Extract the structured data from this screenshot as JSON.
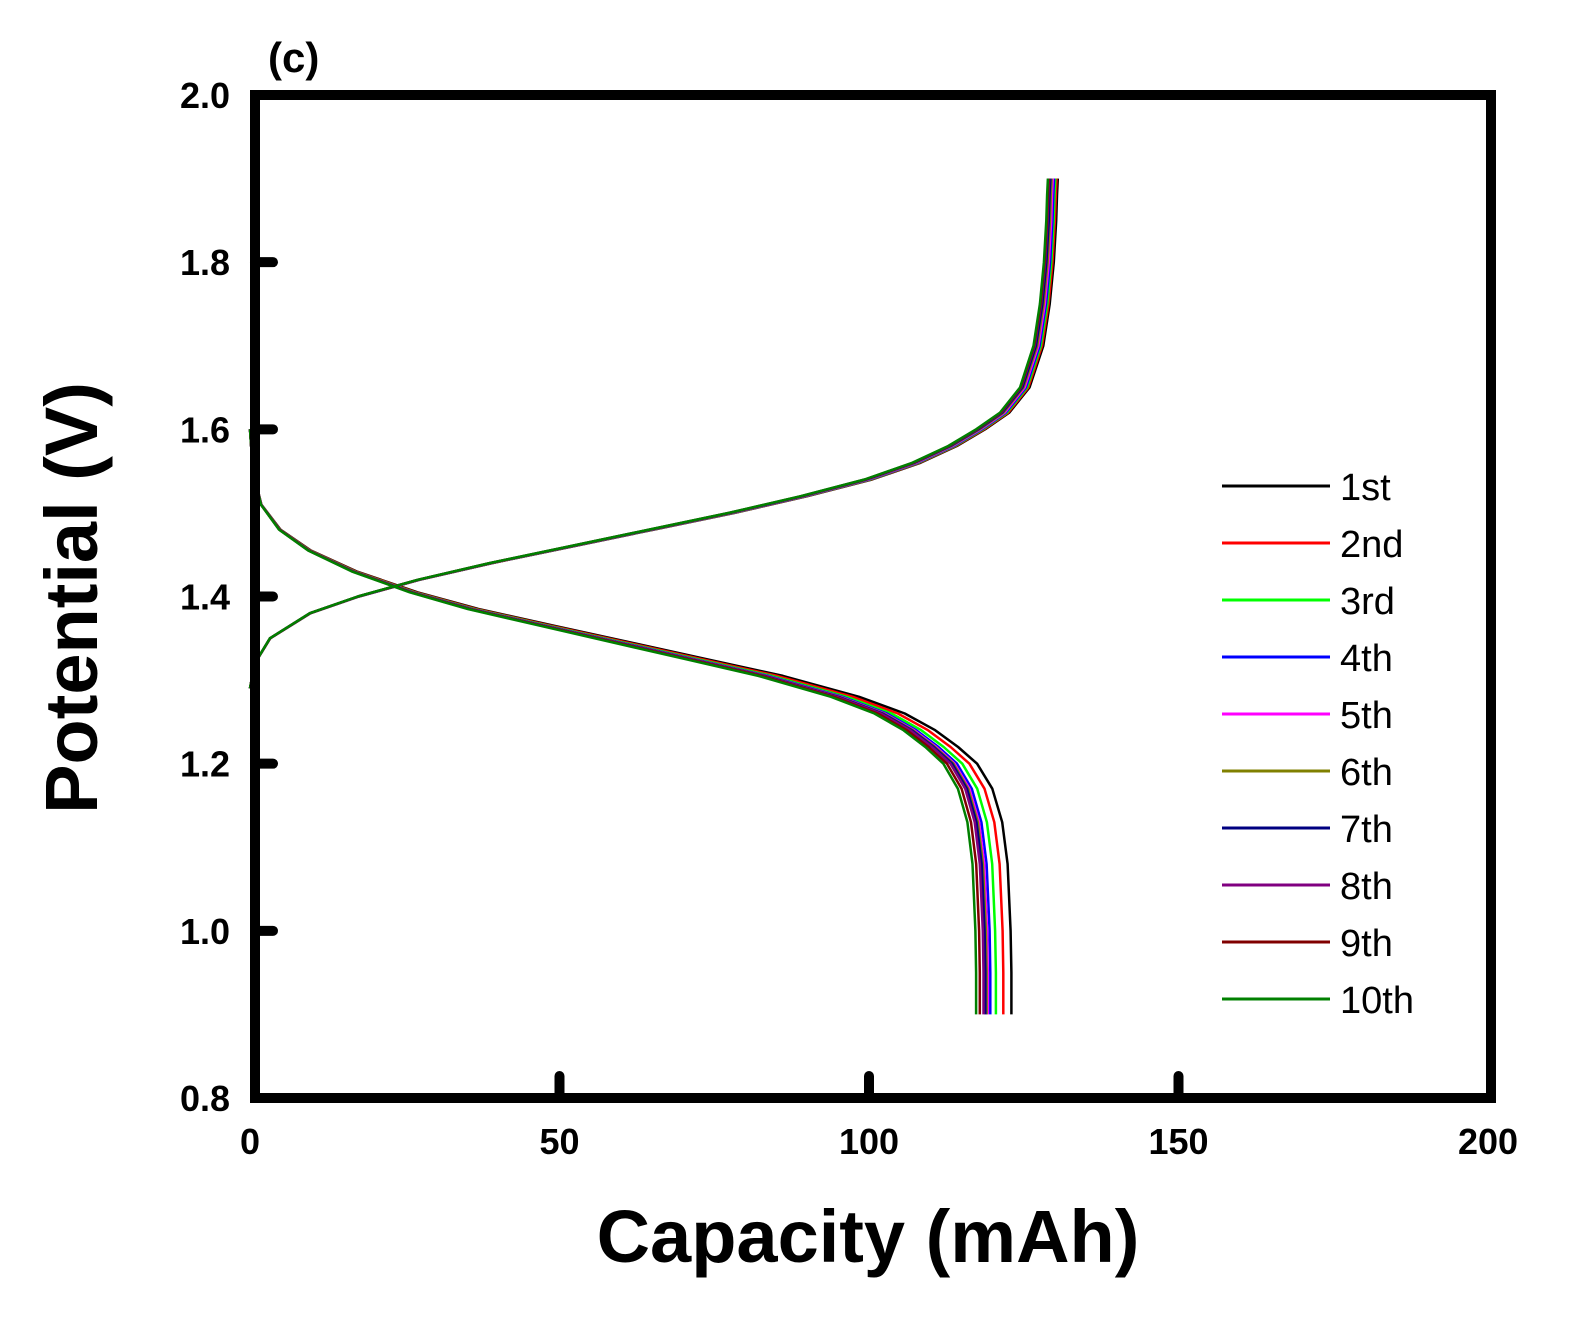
{
  "chart_data": {
    "type": "line",
    "panel_label": "(c)",
    "xlabel": "Capacity (mAh)",
    "ylabel": "Potential (V)",
    "xlim": [
      0,
      200
    ],
    "ylim": [
      0.8,
      2.0
    ],
    "xticks": [
      0,
      50,
      100,
      150,
      200
    ],
    "xtick_labels": [
      "0",
      "50",
      "100",
      "150",
      "200"
    ],
    "yticks": [
      0.8,
      1.0,
      1.2,
      1.4,
      1.6,
      1.8,
      2.0
    ],
    "ytick_labels": [
      "0.8",
      "1.0",
      "1.2",
      "1.4",
      "1.6",
      "1.8",
      "2.0"
    ],
    "grid": false,
    "legend_position": "right",
    "charge_curve_shape": {
      "potential": [
        1.29,
        1.32,
        1.35,
        1.38,
        1.4,
        1.42,
        1.44,
        1.46,
        1.48,
        1.5,
        1.52,
        1.54,
        1.56,
        1.58,
        1.6,
        1.62,
        1.65,
        1.7,
        1.75,
        1.8,
        1.85,
        1.88,
        1.9
      ],
      "capacity_fraction": [
        0.0,
        0.006,
        0.025,
        0.075,
        0.135,
        0.21,
        0.3,
        0.4,
        0.5,
        0.6,
        0.69,
        0.77,
        0.83,
        0.875,
        0.91,
        0.94,
        0.965,
        0.982,
        0.99,
        0.995,
        0.998,
        0.999,
        1.0
      ]
    },
    "discharge_curve_shape": {
      "capacity_fraction": [
        0.0,
        0.004,
        0.015,
        0.04,
        0.08,
        0.14,
        0.22,
        0.3,
        0.4,
        0.5,
        0.6,
        0.7,
        0.8,
        0.86,
        0.9,
        0.93,
        0.955,
        0.975,
        0.988,
        0.995,
        0.999,
        1.0,
        1.0
      ],
      "potential": [
        1.6,
        1.55,
        1.51,
        1.48,
        1.455,
        1.43,
        1.405,
        1.385,
        1.365,
        1.345,
        1.325,
        1.305,
        1.28,
        1.26,
        1.24,
        1.22,
        1.2,
        1.17,
        1.13,
        1.08,
        1.0,
        0.95,
        0.9
      ]
    },
    "series": [
      {
        "name": "1st",
        "color": "#000000",
        "charge_capacity": 130.5,
        "discharge_capacity": 123.0
      },
      {
        "name": "2nd",
        "color": "#ff0000",
        "charge_capacity": 130.3,
        "discharge_capacity": 121.7
      },
      {
        "name": "3rd",
        "color": "#00ff00",
        "charge_capacity": 130.1,
        "discharge_capacity": 120.5
      },
      {
        "name": "4th",
        "color": "#0000ff",
        "charge_capacity": 129.9,
        "discharge_capacity": 119.6
      },
      {
        "name": "5th",
        "color": "#ff00ff",
        "charge_capacity": 129.7,
        "discharge_capacity": 119.2
      },
      {
        "name": "6th",
        "color": "#808000",
        "charge_capacity": 129.5,
        "discharge_capacity": 119.0
      },
      {
        "name": "7th",
        "color": "#000080",
        "charge_capacity": 129.3,
        "discharge_capacity": 118.8
      },
      {
        "name": "8th",
        "color": "#800080",
        "charge_capacity": 129.1,
        "discharge_capacity": 118.5
      },
      {
        "name": "9th",
        "color": "#800000",
        "charge_capacity": 129.0,
        "discharge_capacity": 117.9
      },
      {
        "name": "10th",
        "color": "#008000",
        "charge_capacity": 128.9,
        "discharge_capacity": 117.3
      }
    ]
  }
}
